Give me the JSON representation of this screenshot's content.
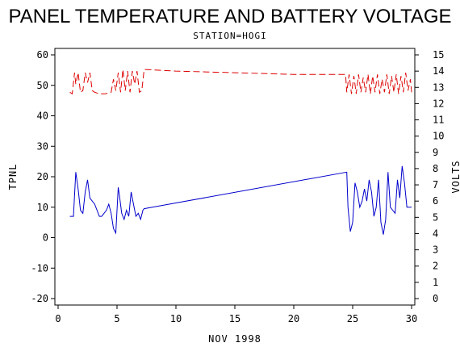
{
  "chart_data": {
    "type": "line",
    "title": "PANEL TEMPERATURE AND BATTERY VOLTAGE",
    "subtitle": "STATION=HOGI",
    "xlabel": "NOV 1998",
    "ylabel_left": "TPNL",
    "ylabel_right": "VOLTS",
    "xlim": [
      0,
      30
    ],
    "ylim_left": [
      -20,
      60
    ],
    "ylim_right": [
      0,
      15
    ],
    "x_ticks": [
      0,
      5,
      10,
      15,
      20,
      25,
      30
    ],
    "y_ticks_left": [
      -20,
      -10,
      0,
      10,
      20,
      30,
      40,
      50,
      60
    ],
    "y_ticks_right": [
      0,
      1,
      2,
      3,
      4,
      5,
      6,
      7,
      8,
      9,
      10,
      11,
      12,
      13,
      14,
      15
    ],
    "grid": false,
    "series": [
      {
        "axis": "left",
        "color": "#0000cc",
        "style": "solid",
        "x": [
          1.0,
          1.3,
          1.5,
          1.7,
          1.9,
          2.1,
          2.3,
          2.5,
          2.7,
          2.9,
          3.1,
          3.3,
          3.5,
          3.7,
          3.9,
          4.1,
          4.3,
          4.5,
          4.7,
          4.9,
          5.1,
          5.2,
          5.4,
          5.6,
          5.8,
          6.0,
          6.2,
          6.4,
          6.6,
          6.8,
          7.0,
          7.2,
          7.3,
          24.5,
          24.6,
          24.8,
          25.0,
          25.2,
          25.4,
          25.6,
          25.8,
          26.0,
          26.2,
          26.4,
          26.6,
          26.8,
          27.0,
          27.2,
          27.4,
          27.6,
          27.8,
          28.0,
          28.2,
          28.4,
          28.6,
          28.8,
          29.0,
          29.2,
          29.4,
          29.6,
          29.8,
          30.0
        ],
        "y": [
          7,
          7,
          21.5,
          16,
          9,
          8,
          15,
          19,
          13,
          12,
          11,
          9,
          7,
          7,
          8,
          9,
          11,
          8,
          3,
          1.5,
          16.5,
          14,
          8,
          6,
          9,
          7,
          15,
          11,
          7,
          8,
          6,
          9,
          9.5,
          21.5,
          10,
          2,
          5,
          18,
          15,
          10,
          12,
          16,
          12,
          19,
          15,
          7,
          10,
          19,
          5,
          1,
          6,
          21.5,
          10,
          9,
          8,
          19,
          13,
          23.5,
          18,
          10,
          10,
          10
        ]
      },
      {
        "axis": "right",
        "color": "#dd0000",
        "style": "dashed",
        "x": [
          1.0,
          1.2,
          1.4,
          1.5,
          1.7,
          1.9,
          2.1,
          2.3,
          2.5,
          2.7,
          2.9,
          3.1,
          3.5,
          4.0,
          4.5,
          4.7,
          4.9,
          5.1,
          5.3,
          5.5,
          5.7,
          5.9,
          6.1,
          6.3,
          6.5,
          6.7,
          6.9,
          7.1,
          7.3,
          10.0,
          15.0,
          20.0,
          24.4,
          24.5,
          24.7,
          24.9,
          25.1,
          25.3,
          25.5,
          25.7,
          25.9,
          26.1,
          26.3,
          26.5,
          26.7,
          26.9,
          27.1,
          27.3,
          27.5,
          27.7,
          27.9,
          28.1,
          28.3,
          28.5,
          28.7,
          28.9,
          29.1,
          29.3,
          29.5,
          29.7,
          29.9,
          30.0
        ],
        "y": [
          12.7,
          12.6,
          13.9,
          13.2,
          13.9,
          12.7,
          12.8,
          13.9,
          13.3,
          13.9,
          12.8,
          12.7,
          12.6,
          12.6,
          12.7,
          13.5,
          12.8,
          13.9,
          12.7,
          14.1,
          12.8,
          14.0,
          12.7,
          14.0,
          13.2,
          14.0,
          12.7,
          12.8,
          14.1,
          14.0,
          13.9,
          13.8,
          13.8,
          12.7,
          13.8,
          12.6,
          13.7,
          12.6,
          13.8,
          12.7,
          13.6,
          12.7,
          13.8,
          12.6,
          13.7,
          12.7,
          13.8,
          12.6,
          13.5,
          12.7,
          13.8,
          12.6,
          13.7,
          12.7,
          13.8,
          12.6,
          13.7,
          12.7,
          13.9,
          12.8,
          13.5,
          12.7
        ]
      }
    ]
  }
}
